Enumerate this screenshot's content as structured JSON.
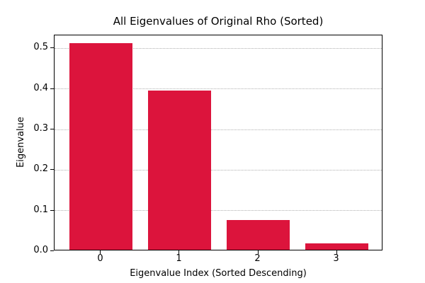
{
  "chart_data": {
    "type": "bar",
    "title": "All Eigenvalues of Original Rho (Sorted)",
    "xlabel": "Eigenvalue Index (Sorted Descending)",
    "ylabel": "Eigenvalue",
    "categories": [
      "0",
      "1",
      "2",
      "3"
    ],
    "values": [
      0.51,
      0.392,
      0.073,
      0.016
    ],
    "bar_color": "#DC143C",
    "bar_width": 0.8,
    "xlim": [
      -0.59,
      3.59
    ],
    "ylim": [
      0,
      0.532
    ],
    "yticks": [
      {
        "value": 0.0,
        "label": "0.0"
      },
      {
        "value": 0.1,
        "label": "0.1"
      },
      {
        "value": 0.2,
        "label": "0.2"
      },
      {
        "value": 0.3,
        "label": "0.3"
      },
      {
        "value": 0.4,
        "label": "0.4"
      },
      {
        "value": 0.5,
        "label": "0.5"
      }
    ],
    "grid": {
      "axis": "y",
      "style": "dotted",
      "color": "#b0b0b0"
    },
    "legend": false,
    "background": "#ffffff",
    "frame_color": "#000000"
  }
}
